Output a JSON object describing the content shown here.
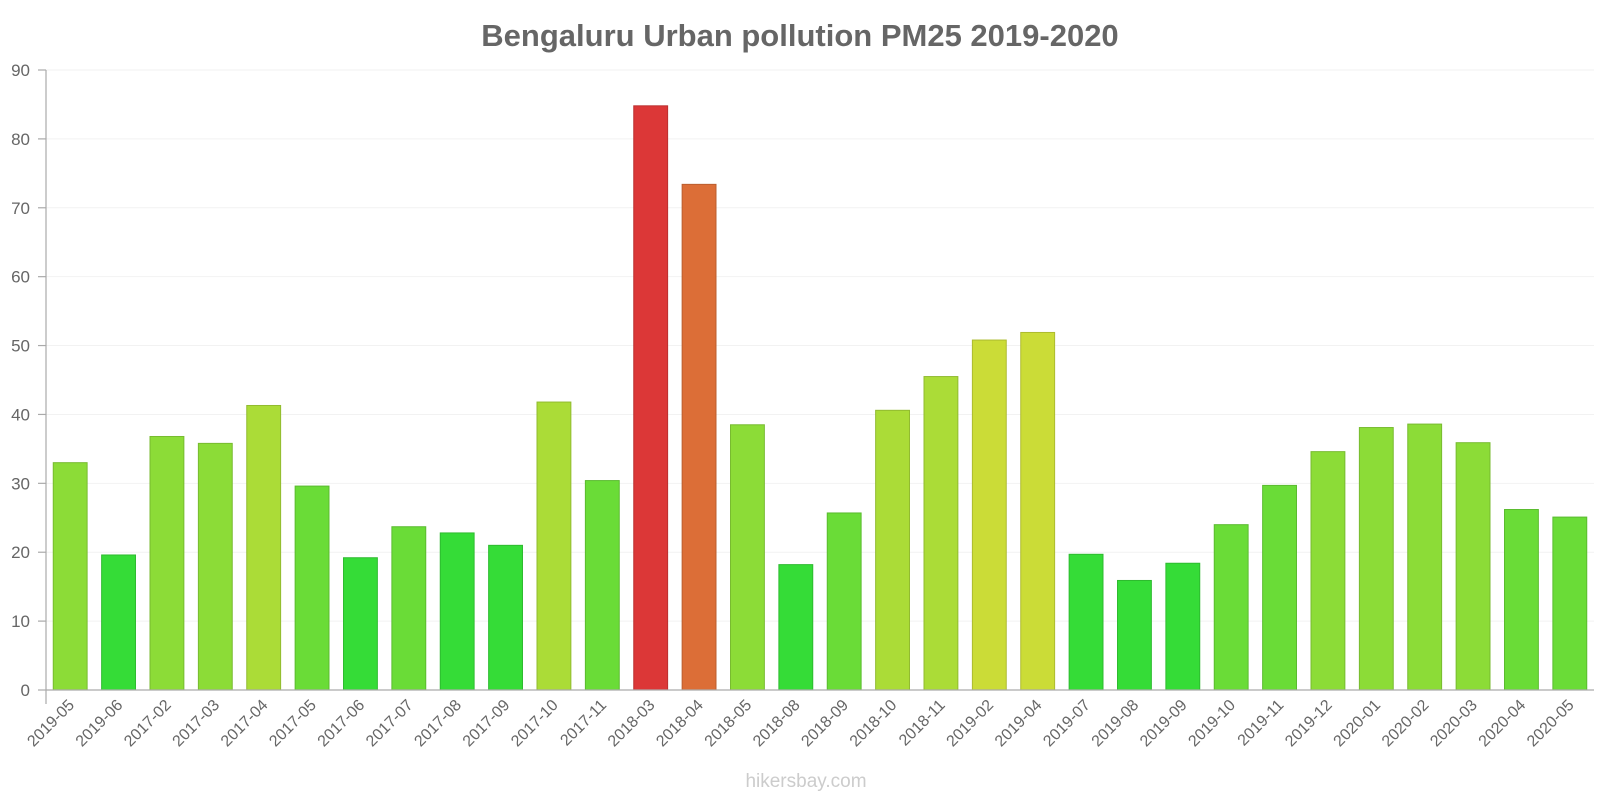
{
  "chart_data": {
    "type": "bar",
    "title": "Bengaluru Urban pollution PM25 2019-2020",
    "xlabel": "",
    "ylabel": "",
    "ylim": [
      0,
      90
    ],
    "yticks": [
      0,
      10,
      20,
      30,
      40,
      50,
      60,
      70,
      80,
      90
    ],
    "grid": true,
    "categories": [
      "2019-05",
      "2019-06",
      "2017-02",
      "2017-03",
      "2017-04",
      "2017-05",
      "2017-06",
      "2017-07",
      "2017-08",
      "2017-09",
      "2017-10",
      "2017-11",
      "2018-03",
      "2018-04",
      "2018-05",
      "2018-08",
      "2018-09",
      "2018-10",
      "2018-11",
      "2019-02",
      "2019-04",
      "2019-07",
      "2019-08",
      "2019-09",
      "2019-10",
      "2019-11",
      "2019-12",
      "2020-01",
      "2020-02",
      "2020-03",
      "2020-04",
      "2020-05"
    ],
    "values": [
      33,
      19.6,
      36.8,
      35.8,
      41.3,
      29.6,
      19.2,
      23.7,
      22.8,
      21,
      41.8,
      30.4,
      84.8,
      73.4,
      38.5,
      18.2,
      25.7,
      40.6,
      45.5,
      50.8,
      51.9,
      19.7,
      15.9,
      18.4,
      24,
      29.7,
      34.6,
      38.1,
      38.6,
      35.9,
      26.2,
      25.1
    ],
    "colors": [
      "#8cdc37",
      "#35dc37",
      "#8cdc37",
      "#8cdc37",
      "#abdc37",
      "#6adc37",
      "#35dc37",
      "#6adc37",
      "#35dc37",
      "#35dc37",
      "#abdc37",
      "#6adc37",
      "#dc3737",
      "#dc6e37",
      "#8cdc37",
      "#35dc37",
      "#6adc37",
      "#abdc37",
      "#abdc37",
      "#cbdc37",
      "#cbdc37",
      "#35dc37",
      "#35dc37",
      "#35dc37",
      "#6adc37",
      "#6adc37",
      "#8cdc37",
      "#8cdc37",
      "#8cdc37",
      "#8cdc37",
      "#6adc37",
      "#6adc37"
    ]
  },
  "watermark": "hikersbay.com"
}
